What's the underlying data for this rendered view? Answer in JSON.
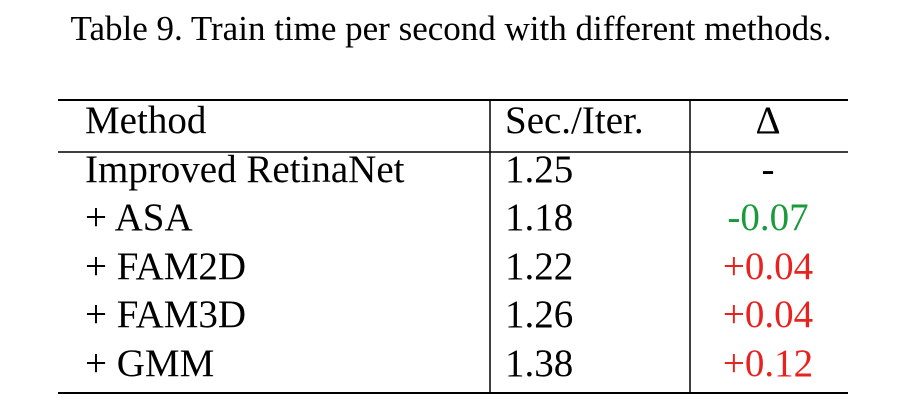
{
  "caption": "Table 9. Train time per second with different methods.",
  "table": {
    "header": [
      "Method",
      "Sec./Iter.",
      "Δ"
    ],
    "rows": [
      [
        "Improved RetinaNet",
        "1.25",
        "-"
      ],
      [
        "+ ASA",
        "1.18",
        "-0.07"
      ],
      [
        "+ FAM2D",
        "1.22",
        "+0.04"
      ],
      [
        "+ FAM3D",
        "1.26",
        "+0.04"
      ],
      [
        "+ GMM",
        "1.38",
        "+0.12"
      ]
    ]
  }
}
